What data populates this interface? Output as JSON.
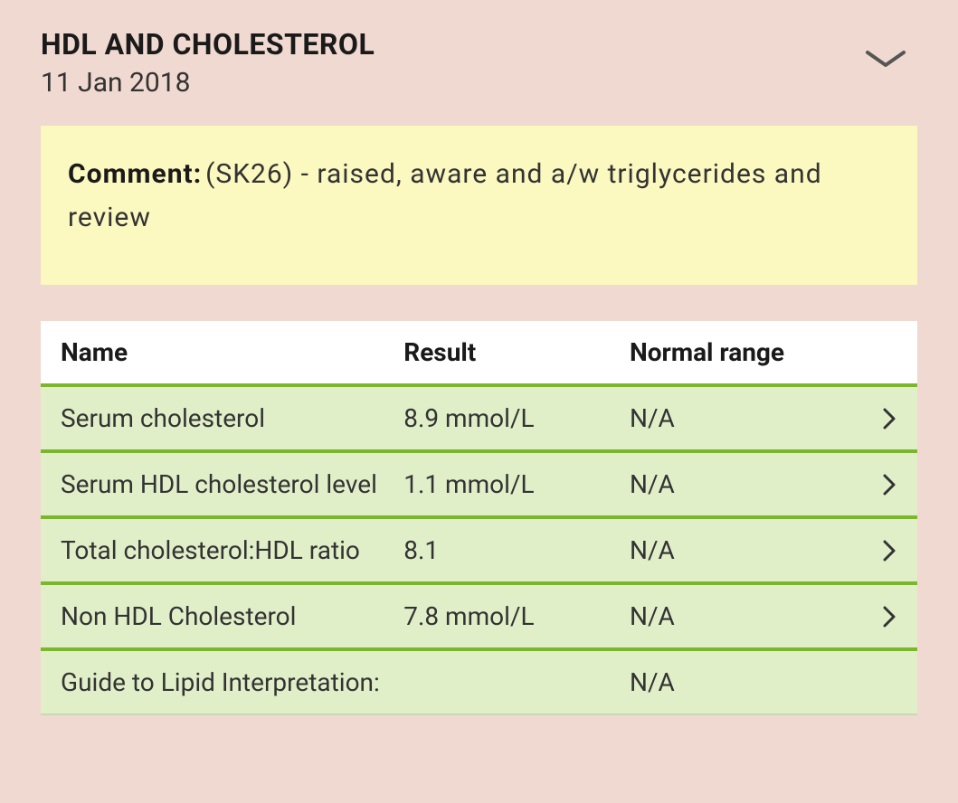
{
  "header": {
    "title": "HDL AND CHOLESTEROL",
    "date": "11 Jan 2018"
  },
  "comment": {
    "label": "Comment:",
    "text": "(SK26) - raised, aware and a/w triglycerides and review"
  },
  "table": {
    "columns": {
      "name": "Name",
      "result": "Result",
      "range": "Normal range"
    },
    "rows": [
      {
        "name": "Serum cholesterol",
        "result": "8.9 mmol/L",
        "range": "N/A",
        "has_arrow": true
      },
      {
        "name": "Serum HDL cholesterol level",
        "result": "1.1 mmol/L",
        "range": "N/A",
        "has_arrow": true
      },
      {
        "name": "Total cholesterol:HDL ratio",
        "result": "8.1",
        "range": "N/A",
        "has_arrow": true
      },
      {
        "name": "Non HDL Cholesterol",
        "result": "7.8 mmol/L",
        "range": "N/A",
        "has_arrow": true
      },
      {
        "name": "Guide to Lipid Interpretation:",
        "result": "",
        "range": "N/A",
        "has_arrow": false
      }
    ]
  },
  "colors": {
    "page_bg": "#f0d9d0",
    "comment_bg": "#fbf8c0",
    "row_bg": "#e1efc9",
    "divider": "#7cb62e",
    "text": "#333",
    "heading": "#1a1a1a"
  }
}
